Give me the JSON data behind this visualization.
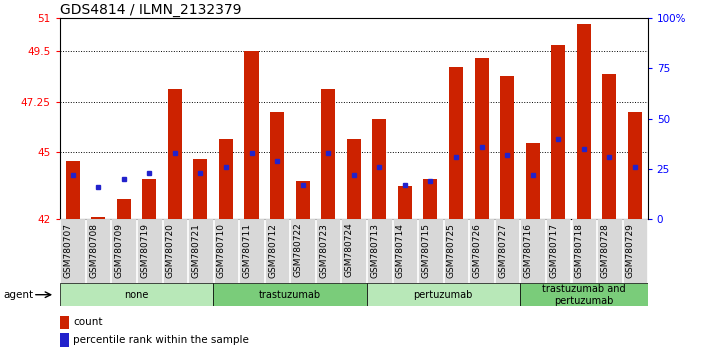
{
  "title": "GDS4814 / ILMN_2132379",
  "samples": [
    "GSM780707",
    "GSM780708",
    "GSM780709",
    "GSM780719",
    "GSM780720",
    "GSM780721",
    "GSM780710",
    "GSM780711",
    "GSM780712",
    "GSM780722",
    "GSM780723",
    "GSM780724",
    "GSM780713",
    "GSM780714",
    "GSM780715",
    "GSM780725",
    "GSM780726",
    "GSM780727",
    "GSM780716",
    "GSM780717",
    "GSM780718",
    "GSM780728",
    "GSM780729"
  ],
  "counts": [
    44.6,
    42.1,
    42.9,
    43.8,
    47.8,
    44.7,
    45.6,
    49.5,
    46.8,
    43.7,
    47.8,
    45.6,
    46.5,
    43.5,
    43.8,
    48.8,
    49.2,
    48.4,
    45.4,
    49.8,
    50.7,
    48.5,
    46.8
  ],
  "percentile_ranks": [
    22,
    16,
    20,
    23,
    33,
    23,
    26,
    33,
    29,
    17,
    33,
    22,
    26,
    17,
    19,
    31,
    36,
    32,
    22,
    40,
    35,
    31,
    26
  ],
  "groups": [
    {
      "label": "none",
      "start": 0,
      "end": 6,
      "color": "#b8e8b8"
    },
    {
      "label": "trastuzumab",
      "start": 6,
      "end": 12,
      "color": "#7acc7a"
    },
    {
      "label": "pertuzumab",
      "start": 12,
      "end": 18,
      "color": "#b8e8b8"
    },
    {
      "label": "trastuzumab and\npertuzumab",
      "start": 18,
      "end": 23,
      "color": "#7acc7a"
    }
  ],
  "bar_color": "#cc2200",
  "dot_color": "#2222cc",
  "ymin": 42,
  "ymax": 51,
  "yticks_left": [
    42,
    45,
    47.25,
    49.5,
    51
  ],
  "yticks_right_vals": [
    0,
    25,
    50,
    75,
    100
  ],
  "yticks_right_labels": [
    "0",
    "25",
    "50",
    "75",
    "100%"
  ],
  "grid_vals": [
    45,
    47.25,
    49.5
  ],
  "bar_width": 0.55,
  "legend_count_label": "count",
  "legend_pct_label": "percentile rank within the sample",
  "agent_label": "agent",
  "xlabel_fontsize": 6.5,
  "title_fontsize": 10
}
